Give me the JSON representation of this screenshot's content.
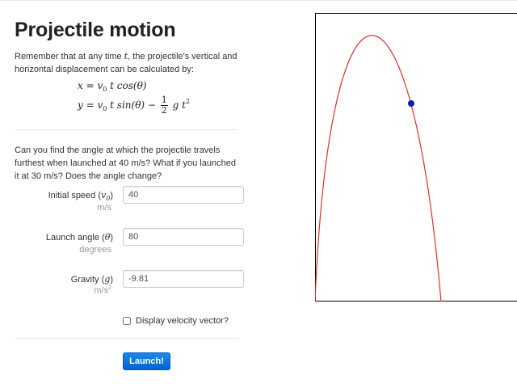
{
  "page": {
    "title": "Projectile motion",
    "intro_a": "Remember that at any time ",
    "intro_t": "t",
    "intro_b": ", the projectile's vertical and horizontal displacement can be calculated by:",
    "question": "Can you find the angle at which the projectile travels furthest when launched at 40 m/s? What if you launched it at 30 m/s? Does the angle change?"
  },
  "equations": {
    "x_lhs": "x = v",
    "x_sub": "0",
    "x_rhs": " t cos(θ)",
    "y_lhs": "y = v",
    "y_sub": "0",
    "y_mid": " t sin(θ) − ",
    "frac_num": "1",
    "frac_den": "2",
    "y_end": " g t",
    "y_sup": "2"
  },
  "form": {
    "speed": {
      "label": "Initial speed (",
      "symbol": "v",
      "sub": "0",
      "close": ")",
      "unit": "m/s",
      "value": "40"
    },
    "angle": {
      "label": "Launch angle (",
      "symbol": "θ",
      "close": ")",
      "unit": "degrees",
      "value": "80"
    },
    "gravity": {
      "label": "Gravity (",
      "symbol": "g",
      "close": ")",
      "unit": "m/s",
      "unit_sup": "2",
      "value": "-9.81"
    },
    "velocity_vector_label": "Display velocity vector?",
    "velocity_vector_checked": false,
    "launch_label": "Launch!"
  },
  "plot": {
    "curve_color": "#e0312b",
    "ball_color": "#0d1fa8",
    "frame_color": "#000000"
  }
}
